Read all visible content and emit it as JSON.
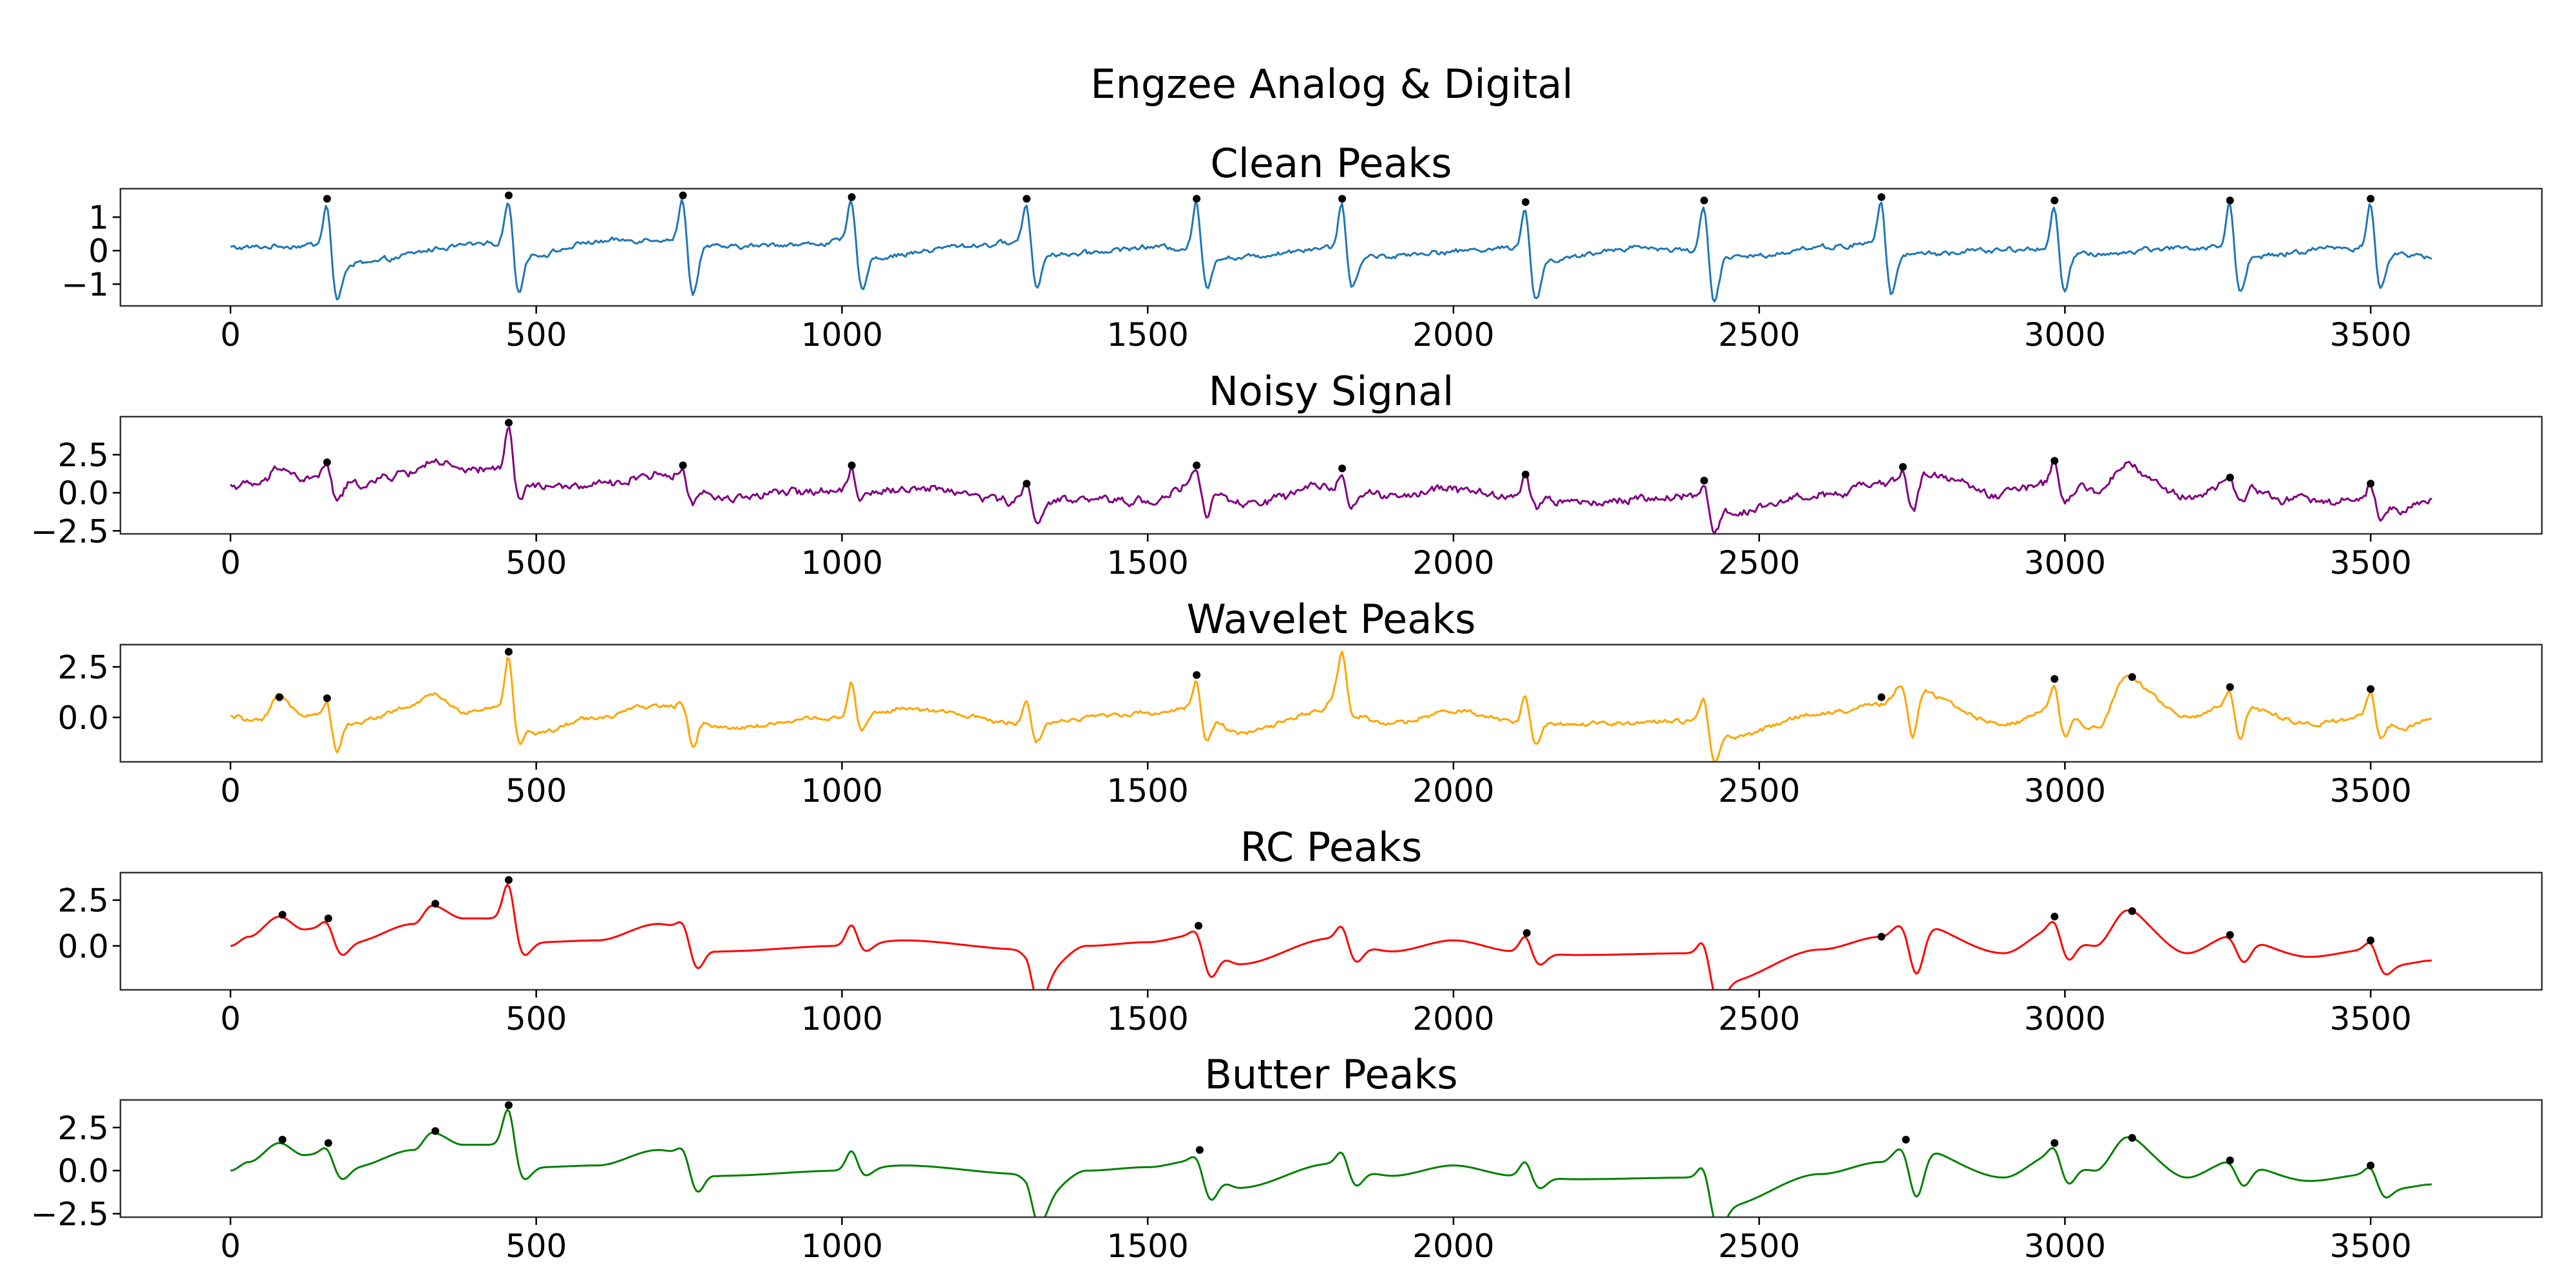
{
  "figure": {
    "suptitle": "Engzee Analog & Digital"
  },
  "chart_data": [
    {
      "type": "line",
      "title": "Clean Peaks",
      "color": "#1f77b4",
      "xlim": [
        -180,
        3780
      ],
      "ylim": [
        -1.65,
        1.85
      ],
      "xticks": [
        0,
        500,
        1000,
        1500,
        2000,
        2500,
        3000,
        3500
      ],
      "yticks": [
        -1,
        0,
        1
      ],
      "ytick_labels": [
        "−1",
        "0",
        "1"
      ],
      "baseline": [
        [
          0,
          0.1
        ],
        [
          150,
          0.15
        ],
        [
          200,
          -0.4
        ],
        [
          400,
          0.2
        ],
        [
          450,
          0.3
        ],
        [
          500,
          -0.1
        ],
        [
          600,
          0.25
        ],
        [
          730,
          0.35
        ],
        [
          790,
          0.1
        ],
        [
          950,
          0.2
        ],
        [
          1010,
          0.3
        ],
        [
          1060,
          -0.2
        ],
        [
          1200,
          0.15
        ],
        [
          1290,
          0.25
        ],
        [
          1350,
          -0.1
        ],
        [
          1500,
          0.1
        ],
        [
          1570,
          0.1
        ],
        [
          1630,
          -0.2
        ],
        [
          1800,
          0.1
        ],
        [
          1850,
          -0.2
        ],
        [
          2000,
          0.0
        ],
        [
          2110,
          0.1
        ],
        [
          2160,
          -0.3
        ],
        [
          2300,
          0.1
        ],
        [
          2400,
          0.0
        ],
        [
          2460,
          -0.2
        ],
        [
          2600,
          0.1
        ],
        [
          2690,
          0.2
        ],
        [
          2750,
          -0.1
        ],
        [
          2950,
          0.05
        ],
        [
          2980,
          0.1
        ],
        [
          3030,
          -0.1
        ],
        [
          3200,
          0.1
        ],
        [
          3260,
          0.1
        ],
        [
          3310,
          -0.2
        ],
        [
          3450,
          0.1
        ],
        [
          3490,
          0.1
        ],
        [
          3540,
          -0.1
        ],
        [
          3600,
          -0.2
        ]
      ],
      "peaks_x": [
        158,
        455,
        740,
        1016,
        1302,
        1580,
        1818,
        2118,
        2410,
        2700,
        2983,
        3270,
        3500
      ],
      "peaks_y": [
        1.55,
        1.65,
        1.65,
        1.6,
        1.55,
        1.55,
        1.55,
        1.45,
        1.5,
        1.6,
        1.5,
        1.5,
        1.55
      ],
      "dips_y": [
        -1.3,
        -1.1,
        -1.3,
        -1.0,
        -1.0,
        -1.0,
        -1.0,
        -1.4,
        -1.5,
        -1.3,
        -1.2,
        -1.1,
        -1.1
      ],
      "noise": 0.06,
      "smooth": false,
      "extra_bumps": []
    },
    {
      "type": "line",
      "title": "Noisy Signal",
      "color": "#800080",
      "xlim": [
        -180,
        3780
      ],
      "ylim": [
        -2.7,
        5.0
      ],
      "xticks": [
        0,
        500,
        1000,
        1500,
        2000,
        2500,
        3000,
        3500
      ],
      "yticks": [
        -2.5,
        0.0,
        2.5
      ],
      "ytick_labels": [
        "−2.5",
        "0.0",
        "2.5"
      ],
      "baseline": [
        [
          0,
          0.5
        ],
        [
          50,
          0.5
        ],
        [
          80,
          1.6
        ],
        [
          120,
          0.8
        ],
        [
          150,
          1.0
        ],
        [
          200,
          0.5
        ],
        [
          300,
          1.3
        ],
        [
          330,
          2.2
        ],
        [
          380,
          1.4
        ],
        [
          440,
          1.6
        ],
        [
          500,
          0.5
        ],
        [
          600,
          0.4
        ],
        [
          700,
          1.2
        ],
        [
          740,
          1.0
        ],
        [
          800,
          -0.3
        ],
        [
          1000,
          0.2
        ],
        [
          1100,
          0.3
        ],
        [
          1300,
          -0.5
        ],
        [
          1500,
          -0.5
        ],
        [
          1580,
          0.6
        ],
        [
          1650,
          -0.8
        ],
        [
          1800,
          0.4
        ],
        [
          1900,
          -0.3
        ],
        [
          2000,
          0.2
        ],
        [
          2100,
          -0.2
        ],
        [
          2200,
          -0.6
        ],
        [
          2400,
          -0.3
        ],
        [
          2440,
          -1.2
        ],
        [
          2600,
          -0.2
        ],
        [
          2700,
          0.5
        ],
        [
          2750,
          1.5
        ],
        [
          2900,
          0.0
        ],
        [
          2980,
          0.8
        ],
        [
          3050,
          0.0
        ],
        [
          3100,
          1.5
        ],
        [
          3200,
          -0.3
        ],
        [
          3270,
          0.6
        ],
        [
          3400,
          -0.6
        ],
        [
          3500,
          -0.3
        ],
        [
          3550,
          -1.0
        ],
        [
          3600,
          -0.6
        ]
      ],
      "peaks_x": [
        158,
        455,
        740,
        1016,
        1302,
        1580,
        1818,
        2118,
        2410,
        2735,
        2983,
        3270,
        3500
      ],
      "peaks_y": [
        2.0,
        4.6,
        1.8,
        1.8,
        0.6,
        1.8,
        1.6,
        1.2,
        0.8,
        1.7,
        2.1,
        1.0,
        0.6
      ],
      "dips_y": [
        -0.4,
        0.0,
        -0.7,
        -0.5,
        -1.8,
        -1.3,
        -0.7,
        -0.9,
        -2.2,
        -1.6,
        -0.5,
        -0.8,
        -1.3
      ],
      "noise": 0.22,
      "smooth": false,
      "extra_bumps": [
        [
          3110,
          1.8
        ]
      ]
    },
    {
      "type": "line",
      "title": "Wavelet Peaks",
      "color": "#ffa500",
      "xlim": [
        -180,
        3780
      ],
      "ylim": [
        -2.2,
        3.6
      ],
      "xticks": [
        0,
        500,
        1000,
        1500,
        2000,
        2500,
        3000,
        3500
      ],
      "yticks": [
        0.0,
        2.5
      ],
      "ytick_labels": [
        "0.0",
        "2.5"
      ],
      "baseline": [
        [
          0,
          0.0
        ],
        [
          50,
          -0.2
        ],
        [
          80,
          1.0
        ],
        [
          120,
          0.2
        ],
        [
          200,
          -0.3
        ],
        [
          300,
          0.6
        ],
        [
          330,
          1.2
        ],
        [
          380,
          0.3
        ],
        [
          440,
          0.5
        ],
        [
          500,
          -0.8
        ],
        [
          600,
          0.0
        ],
        [
          700,
          0.6
        ],
        [
          740,
          0.5
        ],
        [
          800,
          -0.5
        ],
        [
          1000,
          0.0
        ],
        [
          1100,
          0.4
        ],
        [
          1300,
          -0.3
        ],
        [
          1500,
          0.2
        ],
        [
          1580,
          0.5
        ],
        [
          1650,
          -0.8
        ],
        [
          1800,
          0.4
        ],
        [
          1900,
          -0.3
        ],
        [
          2000,
          0.3
        ],
        [
          2100,
          -0.2
        ],
        [
          2200,
          -0.3
        ],
        [
          2400,
          -0.2
        ],
        [
          2440,
          -1.0
        ],
        [
          2600,
          0.2
        ],
        [
          2700,
          0.6
        ],
        [
          2735,
          1.5
        ],
        [
          2900,
          -0.3
        ],
        [
          2980,
          0.5
        ],
        [
          3050,
          -0.5
        ],
        [
          3100,
          1.8
        ],
        [
          3200,
          0.0
        ],
        [
          3270,
          0.7
        ],
        [
          3400,
          -0.3
        ],
        [
          3500,
          0.0
        ],
        [
          3550,
          -0.6
        ],
        [
          3600,
          0.0
        ]
      ],
      "peaks_x": [
        158,
        455,
        740,
        1016,
        1302,
        1580,
        1818,
        2118,
        2410,
        2735,
        2983,
        3270,
        3500
      ],
      "peaks_y": [
        0.9,
        3.2,
        0.8,
        1.8,
        1.0,
        2.0,
        1.8,
        1.2,
        1.0,
        1.8,
        1.8,
        1.5,
        1.3
      ],
      "dips_y": [
        -1.5,
        -0.8,
        -1.2,
        -0.8,
        -1.2,
        -1.0,
        -0.8,
        -1.2,
        -1.8,
        -1.0,
        -0.8,
        -1.0,
        -1.0
      ],
      "noise": 0.09,
      "smooth": false,
      "extra_bumps": [
        [
          1820,
          1.9
        ],
        [
          3110,
          1.9
        ]
      ],
      "markers_x": [
        80,
        158,
        455,
        1580,
        2700,
        2983,
        3110,
        3270,
        3500
      ],
      "markers_y": [
        1.0,
        0.95,
        3.25,
        2.1,
        1.0,
        1.9,
        2.0,
        1.5,
        1.4
      ]
    },
    {
      "type": "line",
      "title": "RC Peaks",
      "color": "#ff0000",
      "xlim": [
        -180,
        3780
      ],
      "ylim": [
        -2.4,
        4.0
      ],
      "xticks": [
        0,
        500,
        1000,
        1500,
        2000,
        2500,
        3000,
        3500
      ],
      "yticks": [
        0.0,
        2.5
      ],
      "ytick_labels": [
        "0.0",
        "2.5"
      ],
      "baseline": [
        [
          0,
          0.0
        ],
        [
          30,
          0.5
        ],
        [
          80,
          1.6
        ],
        [
          120,
          0.9
        ],
        [
          150,
          1.0
        ],
        [
          200,
          0.2
        ],
        [
          300,
          1.2
        ],
        [
          330,
          2.2
        ],
        [
          380,
          1.5
        ],
        [
          440,
          1.5
        ],
        [
          500,
          0.2
        ],
        [
          600,
          0.3
        ],
        [
          700,
          1.2
        ],
        [
          740,
          1.0
        ],
        [
          800,
          -0.3
        ],
        [
          1000,
          0.0
        ],
        [
          1100,
          0.3
        ],
        [
          1300,
          -0.2
        ],
        [
          1320,
          -1.7
        ],
        [
          1400,
          0.0
        ],
        [
          1500,
          0.2
        ],
        [
          1580,
          0.6
        ],
        [
          1650,
          -1.0
        ],
        [
          1800,
          0.4
        ],
        [
          1900,
          -0.3
        ],
        [
          2000,
          0.3
        ],
        [
          2100,
          -0.3
        ],
        [
          2200,
          -0.5
        ],
        [
          2400,
          -0.4
        ],
        [
          2440,
          -2.0
        ],
        [
          2600,
          -0.2
        ],
        [
          2700,
          0.5
        ],
        [
          2740,
          1.4
        ],
        [
          2900,
          -0.4
        ],
        [
          2980,
          0.9
        ],
        [
          3050,
          0.0
        ],
        [
          3100,
          1.8
        ],
        [
          3200,
          -0.4
        ],
        [
          3270,
          0.5
        ],
        [
          3400,
          -0.6
        ],
        [
          3500,
          -0.2
        ],
        [
          3550,
          -1.0
        ],
        [
          3600,
          -0.8
        ]
      ],
      "peaks_x": [
        158,
        455,
        740,
        1016,
        1302,
        1580,
        1818,
        2118,
        2410,
        2735,
        2983,
        3270,
        3500
      ],
      "peaks_y": [
        1.4,
        3.5,
        1.5,
        1.2,
        -0.5,
        1.0,
        1.2,
        0.6,
        0.2,
        1.4,
        1.5,
        0.6,
        0.3
      ],
      "dips_y": [
        0.0,
        0.2,
        -0.8,
        -0.4,
        -1.6,
        -1.3,
        -0.7,
        -1.0,
        -2.0,
        -1.5,
        -0.5,
        -0.8,
        -1.2
      ],
      "noise": 0.0,
      "smooth": true,
      "extra_bumps": [
        [
          3110,
          1.9
        ]
      ],
      "markers_x": [
        85,
        160,
        335,
        455,
        1583,
        2120,
        2700,
        2983,
        3110,
        3270,
        3500
      ],
      "markers_y": [
        1.7,
        1.5,
        2.3,
        3.6,
        1.1,
        0.7,
        0.5,
        1.6,
        1.9,
        0.6,
        0.3
      ]
    },
    {
      "type": "line",
      "title": "Butter Peaks",
      "color": "#008000",
      "xlim": [
        -180,
        3780
      ],
      "ylim": [
        -2.7,
        4.1
      ],
      "xticks": [
        0,
        500,
        1000,
        1500,
        2000,
        2500,
        3000,
        3500
      ],
      "yticks": [
        -2.5,
        0.0,
        2.5
      ],
      "ytick_labels": [
        "−2.5",
        "0.0",
        "2.5"
      ],
      "baseline": [
        [
          0,
          0.0
        ],
        [
          30,
          0.5
        ],
        [
          80,
          1.6
        ],
        [
          120,
          0.9
        ],
        [
          150,
          1.0
        ],
        [
          200,
          0.2
        ],
        [
          300,
          1.2
        ],
        [
          330,
          2.2
        ],
        [
          380,
          1.5
        ],
        [
          440,
          1.5
        ],
        [
          500,
          0.2
        ],
        [
          600,
          0.3
        ],
        [
          700,
          1.2
        ],
        [
          740,
          1.0
        ],
        [
          800,
          -0.3
        ],
        [
          1000,
          0.0
        ],
        [
          1100,
          0.3
        ],
        [
          1300,
          -0.2
        ],
        [
          1320,
          -1.7
        ],
        [
          1400,
          0.0
        ],
        [
          1500,
          0.2
        ],
        [
          1580,
          0.6
        ],
        [
          1650,
          -1.0
        ],
        [
          1800,
          0.4
        ],
        [
          1900,
          -0.3
        ],
        [
          2000,
          0.3
        ],
        [
          2100,
          -0.3
        ],
        [
          2200,
          -0.5
        ],
        [
          2400,
          -0.4
        ],
        [
          2440,
          -2.1
        ],
        [
          2600,
          -0.2
        ],
        [
          2700,
          0.5
        ],
        [
          2740,
          1.5
        ],
        [
          2900,
          -0.4
        ],
        [
          2980,
          0.9
        ],
        [
          3050,
          0.0
        ],
        [
          3100,
          1.8
        ],
        [
          3200,
          -0.4
        ],
        [
          3270,
          0.5
        ],
        [
          3400,
          -0.6
        ],
        [
          3500,
          -0.2
        ],
        [
          3550,
          -1.0
        ],
        [
          3600,
          -0.8
        ]
      ],
      "peaks_x": [
        158,
        455,
        740,
        1016,
        1302,
        1580,
        1818,
        2118,
        2410,
        2735,
        2983,
        3270,
        3500
      ],
      "peaks_y": [
        1.4,
        3.7,
        1.5,
        1.2,
        -0.5,
        1.0,
        1.2,
        0.6,
        0.2,
        1.6,
        1.5,
        0.6,
        0.3
      ],
      "dips_y": [
        0.0,
        0.2,
        -0.8,
        -0.4,
        -1.6,
        -1.3,
        -0.7,
        -1.0,
        -2.2,
        -1.5,
        -0.5,
        -0.8,
        -1.2
      ],
      "noise": 0.0,
      "smooth": true,
      "extra_bumps": [
        [
          3110,
          1.9
        ]
      ],
      "markers_x": [
        85,
        160,
        335,
        455,
        1585,
        2740,
        2983,
        3110,
        3270,
        3500
      ],
      "markers_y": [
        1.8,
        1.6,
        2.3,
        3.8,
        1.2,
        1.8,
        1.6,
        1.9,
        0.6,
        0.3
      ]
    }
  ]
}
